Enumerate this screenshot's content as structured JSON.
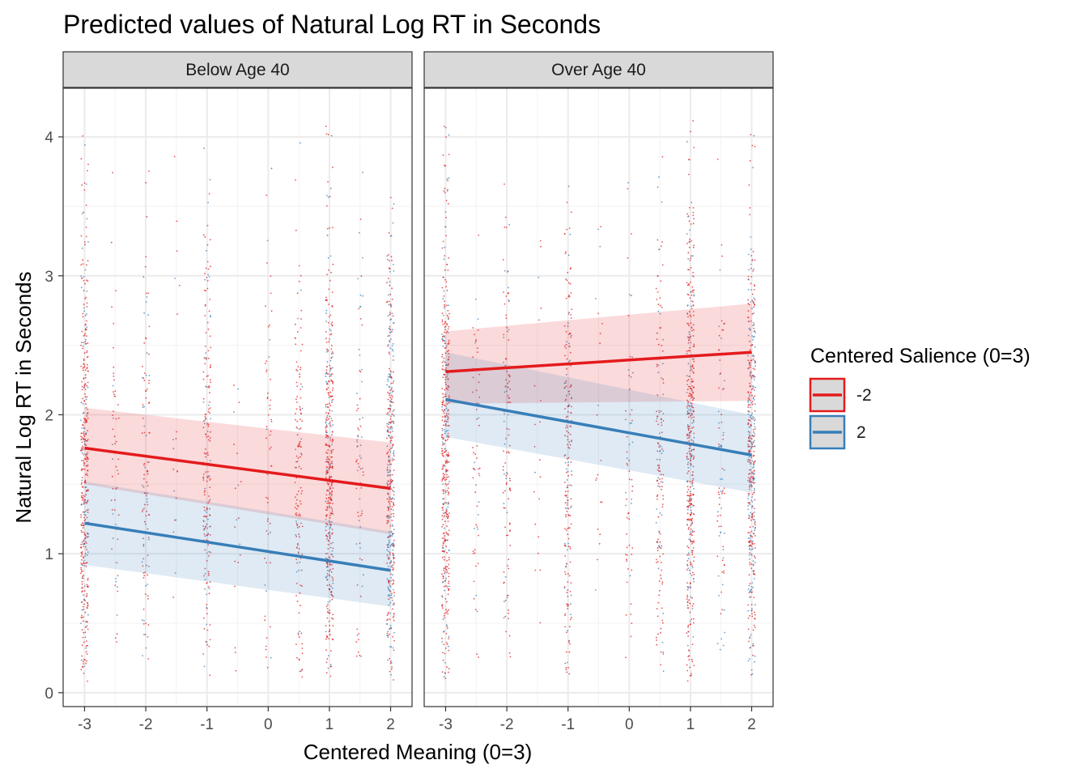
{
  "chart_data": {
    "type": "line",
    "title": "Predicted values of Natural Log RT in Seconds",
    "xlabel": "Centered Meaning (0=3)",
    "ylabel": "Natural Log RT in Seconds",
    "x_ticks": [
      -3,
      -2,
      -1,
      0,
      1,
      2
    ],
    "y_ticks": [
      0,
      1,
      2,
      3,
      4
    ],
    "xlim": [
      -3.35,
      2.35
    ],
    "ylim": [
      -0.1,
      4.35
    ],
    "grid": true,
    "legend": {
      "title": "Centered Salience (0=3)",
      "position": "right",
      "entries": [
        {
          "label": "-2",
          "color": "#E41A1C"
        },
        {
          "label": "2",
          "color": "#377EB8"
        }
      ]
    },
    "colors": {
      "red": "#E41A1C",
      "blue": "#377EB8",
      "strip": "#D9D9D9"
    },
    "jitter_x_levels": [
      -3,
      -2.5,
      -2,
      -1.5,
      -1,
      -0.5,
      0,
      0.5,
      1,
      1.5,
      2
    ],
    "panels": [
      {
        "label": "Below Age 40",
        "series": [
          {
            "name": "-2",
            "color": "#E41A1C",
            "x": [
              -3,
              2
            ],
            "y": [
              1.76,
              1.47
            ],
            "ci_low": [
              1.5,
              1.14
            ],
            "ci_high": [
              2.05,
              1.8
            ]
          },
          {
            "name": "2",
            "color": "#377EB8",
            "x": [
              -3,
              2
            ],
            "y": [
              1.22,
              0.88
            ],
            "ci_low": [
              0.92,
              0.62
            ],
            "ci_high": [
              1.52,
              1.16
            ]
          }
        ]
      },
      {
        "label": "Over Age 40",
        "series": [
          {
            "name": "-2",
            "color": "#E41A1C",
            "x": [
              -3,
              2
            ],
            "y": [
              2.31,
              2.45
            ],
            "ci_low": [
              2.08,
              2.1
            ],
            "ci_high": [
              2.6,
              2.8
            ]
          },
          {
            "name": "2",
            "color": "#377EB8",
            "x": [
              -3,
              2
            ],
            "y": [
              2.11,
              1.71
            ],
            "ci_low": [
              1.84,
              1.44
            ],
            "ci_high": [
              2.45,
              2.0
            ]
          }
        ]
      }
    ]
  }
}
